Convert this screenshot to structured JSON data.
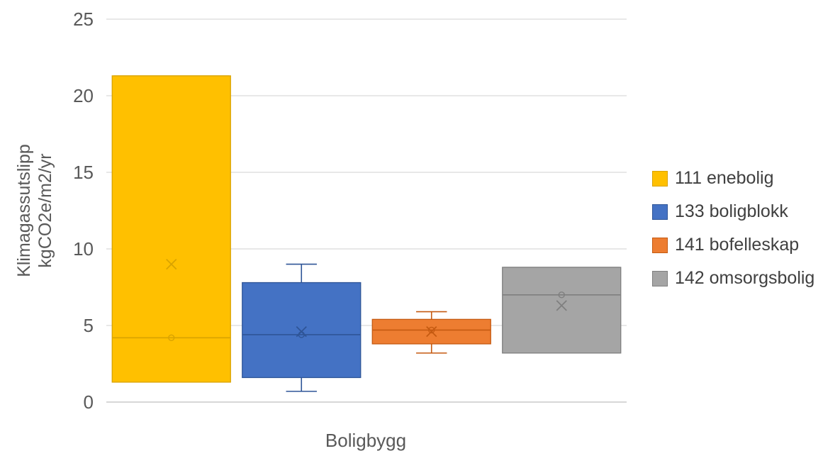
{
  "chart_data": {
    "type": "boxplot",
    "title": "",
    "xlabel": "Boligbygg",
    "ylabel_lines": [
      "Klimagassutslipp",
      "kgCO2e/m2/yr"
    ],
    "ylim": [
      0,
      25
    ],
    "yticks": [
      0,
      5,
      10,
      15,
      20,
      25
    ],
    "ytick_labels": [
      "0",
      "5",
      "10",
      "15",
      "20",
      "25"
    ],
    "grid": true,
    "legend_position": "right",
    "series": [
      {
        "name": "111 enebolig",
        "color": "#FFC000",
        "stroke": "#D9A300",
        "min": 1.3,
        "q1": 1.3,
        "median": 4.2,
        "q3": 21.3,
        "max": 21.3,
        "mean": 9.0
      },
      {
        "name": "133 boligblokk",
        "color": "#4472C4",
        "stroke": "#2F5597",
        "min": 0.7,
        "q1": 1.6,
        "median": 4.4,
        "q3": 7.8,
        "max": 9.0,
        "mean": 4.6
      },
      {
        "name": "141 bofelleskap",
        "color": "#ED7D31",
        "stroke": "#C55A11",
        "min": 3.2,
        "q1": 3.8,
        "median": 4.7,
        "q3": 5.4,
        "max": 5.9,
        "mean": 4.6
      },
      {
        "name": "142 omsorgsbolig",
        "color": "#A5A5A5",
        "stroke": "#7F7F7F",
        "min": 3.2,
        "q1": 3.2,
        "median": 7.0,
        "q3": 8.8,
        "max": 8.8,
        "mean": 6.3
      }
    ]
  }
}
